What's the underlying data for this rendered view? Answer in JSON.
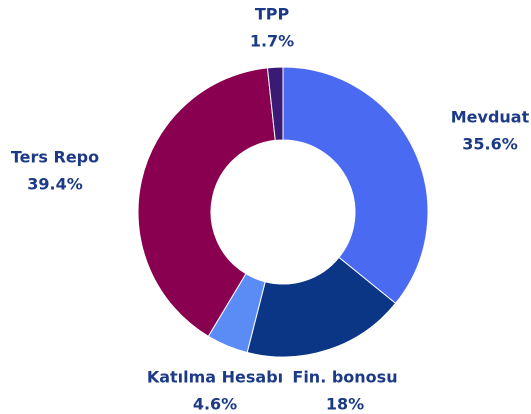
{
  "chart_data": {
    "type": "donut",
    "categories": [
      "Mevduat",
      "Fin. bonosu",
      "Katılma Hesabı",
      "Ters Repo",
      "TPP"
    ],
    "values": [
      35.6,
      18,
      4.6,
      39.4,
      1.7
    ],
    "value_labels": [
      "35.6%",
      "18%",
      "4.6%",
      "39.4%",
      "1.7%"
    ],
    "colors": [
      "#4a6af2",
      "#0b3686",
      "#5b8bf5",
      "#8a0050",
      "#3b1a75"
    ]
  }
}
